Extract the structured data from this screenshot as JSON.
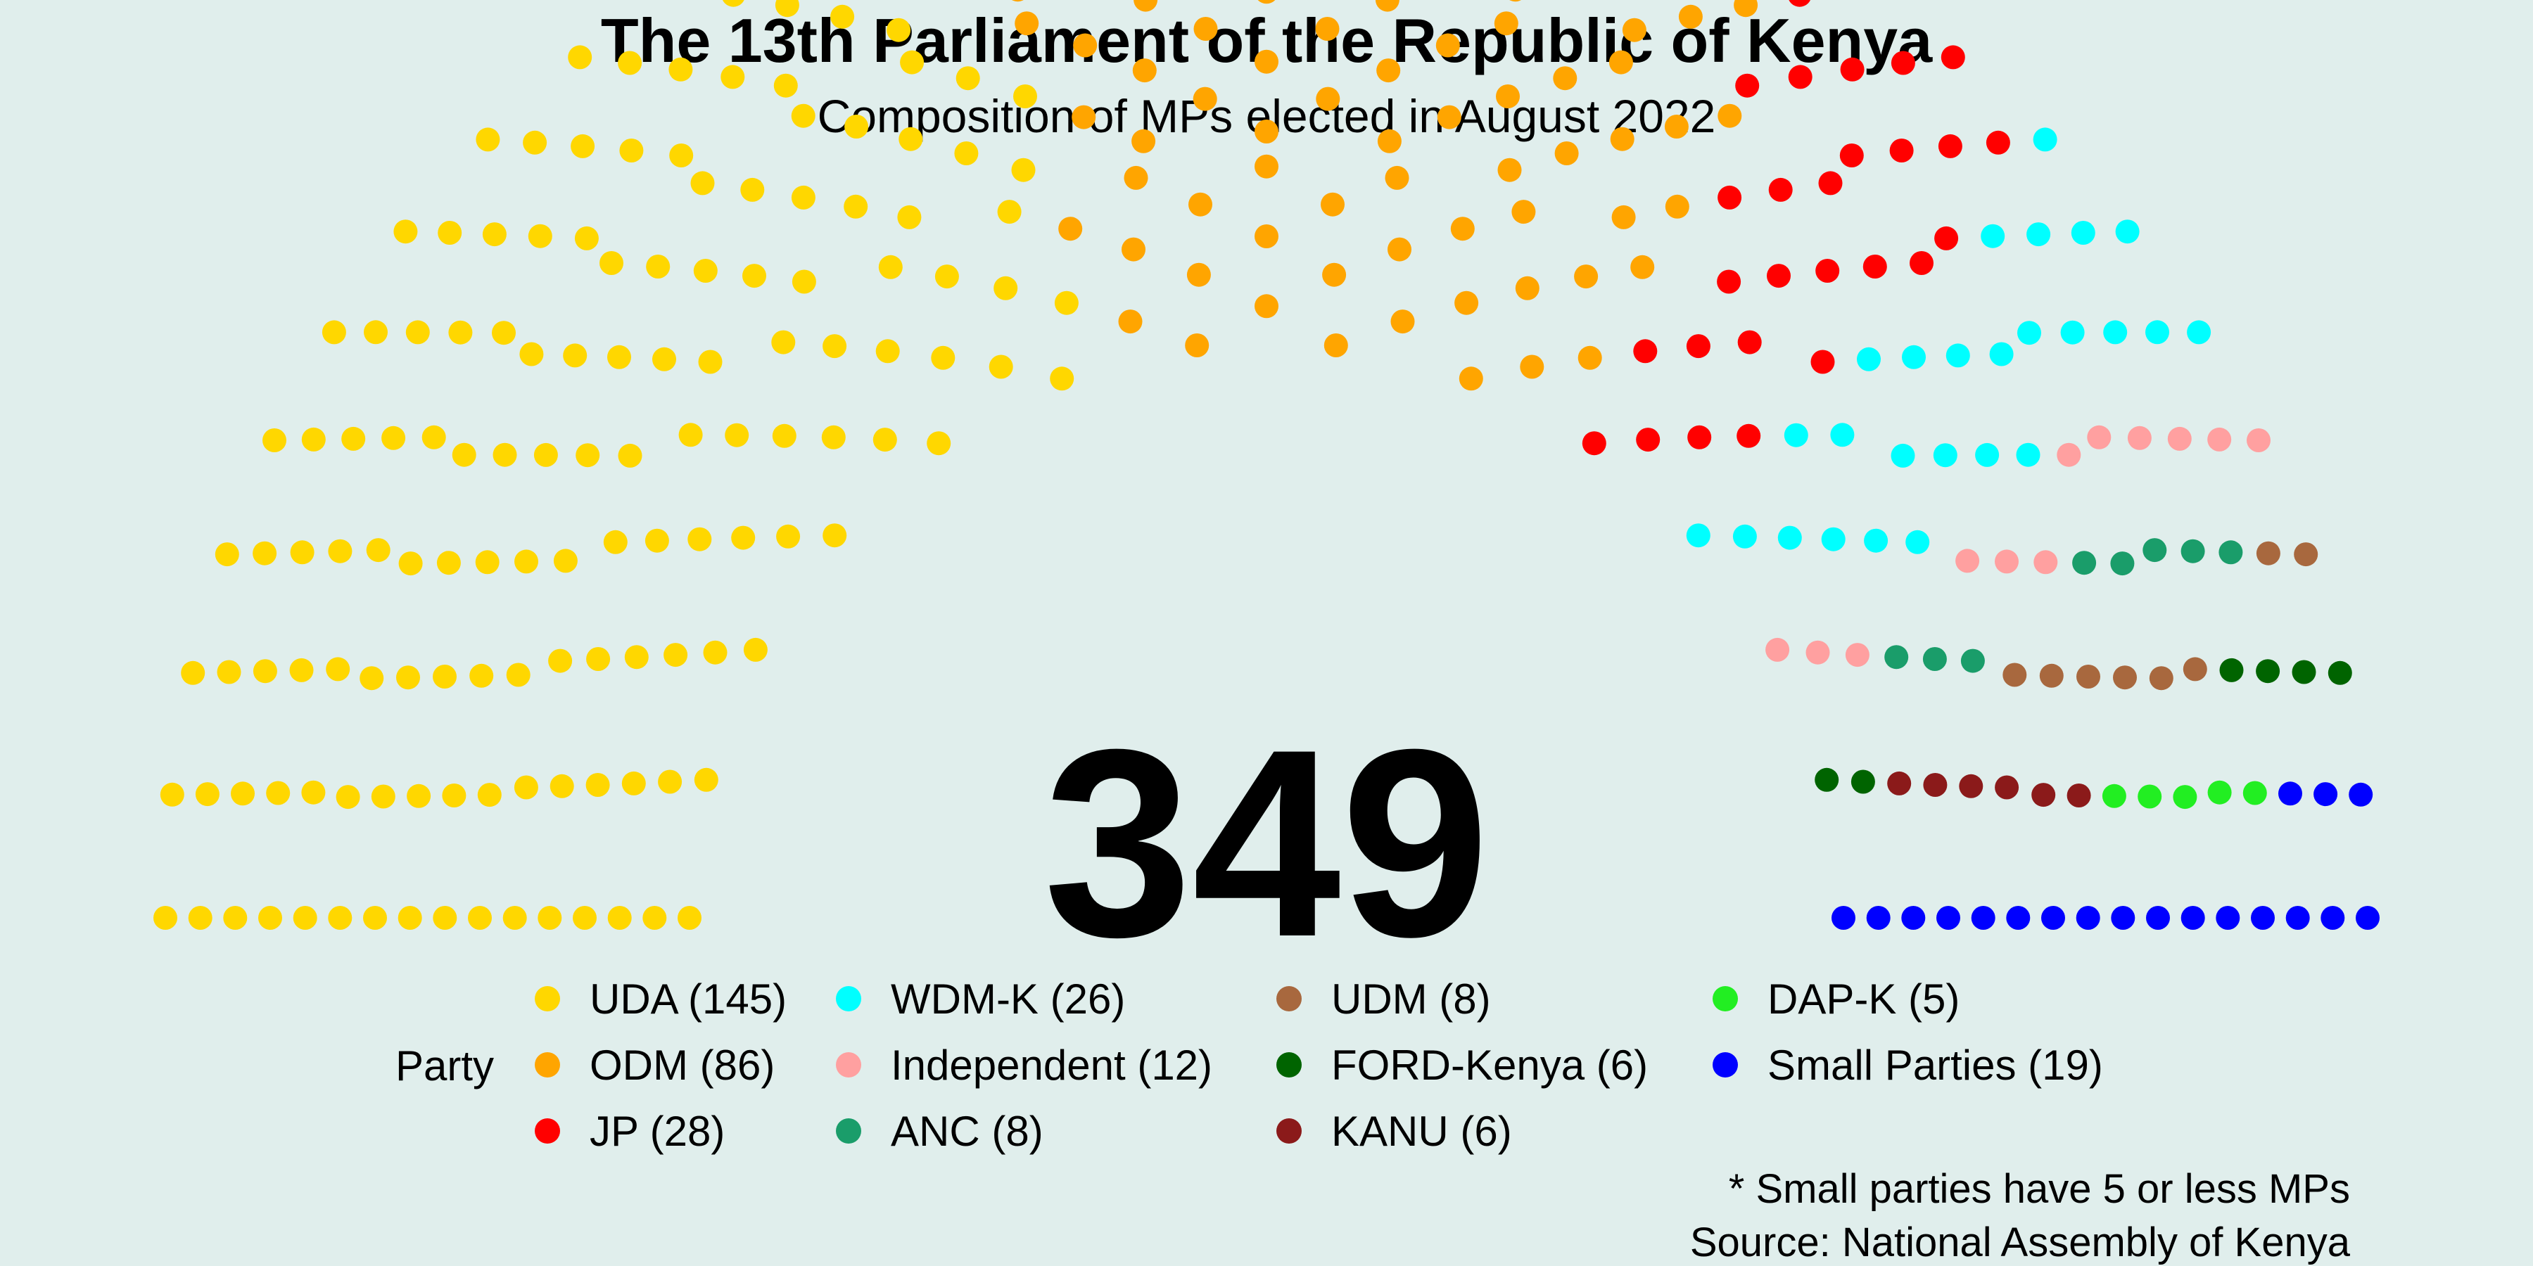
{
  "chart_data": {
    "type": "parliament",
    "title": "The 13th Parliament of the Republic of Kenya",
    "subtitle": "Composition of MPs elected in August 2022",
    "total": "349",
    "legend_title": "Party",
    "legend_placement": "bottom",
    "grid": false,
    "rows": 16,
    "series": [
      {
        "name": "UDA",
        "label": "UDA (145)",
        "value": 145,
        "color": "#FFD700"
      },
      {
        "name": "ODM",
        "label": "ODM (86)",
        "value": 86,
        "color": "#FFA500"
      },
      {
        "name": "JP",
        "label": "JP (28)",
        "value": 28,
        "color": "#FF0000"
      },
      {
        "name": "WDM-K",
        "label": "WDM-K (26)",
        "value": 26,
        "color": "#00FFFF"
      },
      {
        "name": "Independent",
        "label": "Independent (12)",
        "value": 12,
        "color": "#FFA0A0"
      },
      {
        "name": "ANC",
        "label": "ANC (8)",
        "value": 8,
        "color": "#1A9D6A"
      },
      {
        "name": "UDM",
        "label": "UDM (8)",
        "value": 8,
        "color": "#A8683E"
      },
      {
        "name": "FORD-Kenya",
        "label": "FORD-Kenya (6)",
        "value": 6,
        "color": "#006400"
      },
      {
        "name": "KANU",
        "label": "KANU (6)",
        "value": 6,
        "color": "#8B1A1A"
      },
      {
        "name": "DAP-K",
        "label": "DAP-K (5)",
        "value": 5,
        "color": "#22EE22"
      },
      {
        "name": "Small Parties",
        "label": "Small Parties (19)",
        "value": 19,
        "color": "#0000FF"
      }
    ],
    "caption_lines": [
      "* Small parties have 5 or less MPs",
      "Source: National Assembly of Kenya"
    ]
  }
}
